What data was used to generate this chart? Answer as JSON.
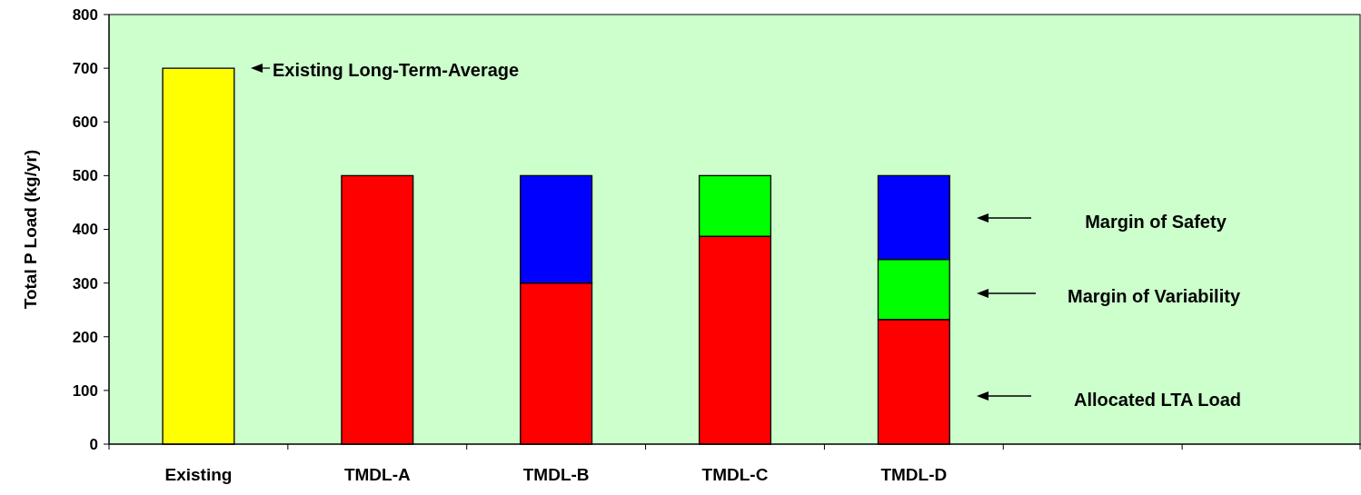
{
  "chart_data": {
    "type": "bar",
    "stacked": true,
    "categories": [
      "Existing",
      "TMDL-A",
      "TMDL-B",
      "TMDL-C",
      "TMDL-D",
      null,
      null
    ],
    "series": [
      {
        "color": "#ffff00",
        "values": [
          700,
          null,
          null,
          null,
          null,
          null,
          null
        ]
      },
      {
        "color": "#ff0000",
        "values": [
          null,
          500,
          300,
          387,
          232,
          null,
          null
        ]
      },
      {
        "color": "#00ff00",
        "values": [
          null,
          null,
          null,
          113,
          112,
          null,
          null
        ]
      },
      {
        "color": "#0000ff",
        "values": [
          null,
          null,
          200,
          null,
          156,
          null,
          null
        ]
      }
    ],
    "ylabel": "Total P Load (kg/yr)",
    "ylim": [
      0,
      800
    ],
    "yticks": [
      0,
      100,
      200,
      300,
      400,
      500,
      600,
      700,
      800
    ],
    "grid": false,
    "annotations": [
      "Existing Long-Term-Average",
      "Margin of Safety",
      "Margin of Variability",
      "Allocated LTA Load"
    ]
  }
}
